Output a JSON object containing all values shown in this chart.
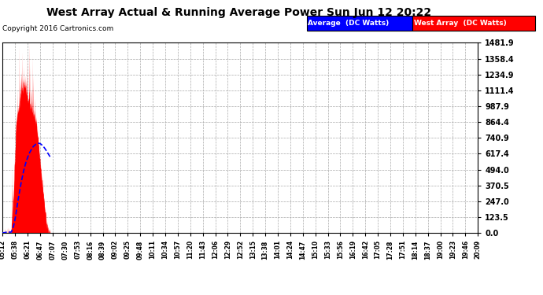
{
  "title": "West Array Actual & Running Average Power Sun Jun 12 20:22",
  "copyright": "Copyright 2016 Cartronics.com",
  "legend_avg": "Average  (DC Watts)",
  "legend_west": "West Array  (DC Watts)",
  "ylim": [
    0,
    1481.9
  ],
  "yticks": [
    0.0,
    123.5,
    247.0,
    370.5,
    494.0,
    617.4,
    740.9,
    864.4,
    987.9,
    1111.4,
    1234.9,
    1358.4,
    1481.9
  ],
  "fill_color": "#ff0000",
  "avg_line_color": "#0000ff",
  "bg_color": "#ffffff",
  "grid_color": "#aaaaaa",
  "xtick_labels": [
    "05:12",
    "05:38",
    "06:21",
    "06:47",
    "07:07",
    "07:30",
    "07:53",
    "08:16",
    "08:39",
    "09:02",
    "09:25",
    "09:48",
    "10:11",
    "10:34",
    "10:57",
    "11:20",
    "11:43",
    "12:06",
    "12:29",
    "12:52",
    "13:15",
    "13:38",
    "14:01",
    "14:24",
    "14:47",
    "15:10",
    "15:33",
    "15:56",
    "16:19",
    "16:42",
    "17:05",
    "17:28",
    "17:51",
    "18:14",
    "18:37",
    "19:00",
    "19:23",
    "19:46",
    "20:09"
  ]
}
